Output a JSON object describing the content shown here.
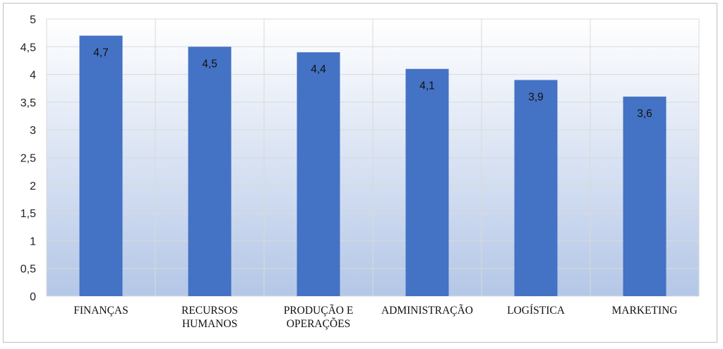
{
  "chart_data": {
    "type": "bar",
    "categories": [
      [
        "FINANÇAS"
      ],
      [
        "RECURSOS",
        "HUMANOS"
      ],
      [
        "PRODUÇÃO E",
        "OPERAÇÕES"
      ],
      [
        "ADMINISTRAÇÃO"
      ],
      [
        "LOGÍSTICA"
      ],
      [
        "MARKETING"
      ]
    ],
    "values": [
      4.7,
      4.5,
      4.4,
      4.1,
      3.9,
      3.6
    ],
    "data_labels": [
      "4,7",
      "4,5",
      "4,4",
      "4,1",
      "3,9",
      "3,6"
    ],
    "yticks": [
      0,
      0.5,
      1,
      1.5,
      2,
      2.5,
      3,
      3.5,
      4,
      4.5,
      5
    ],
    "ytick_labels": [
      "0",
      "0,5",
      "1",
      "1,5",
      "2",
      "2,5",
      "3",
      "3,5",
      "4",
      "4,5",
      "5"
    ],
    "ylim": [
      0,
      5
    ],
    "title": "",
    "xlabel": "",
    "ylabel": "",
    "grid": true,
    "legend": "none",
    "colors": {
      "bar": "#4472C4",
      "grid": "#d9d9d9",
      "plot_bg_top": "#ffffff",
      "plot_bg_bottom": "#b4c7e7"
    }
  }
}
